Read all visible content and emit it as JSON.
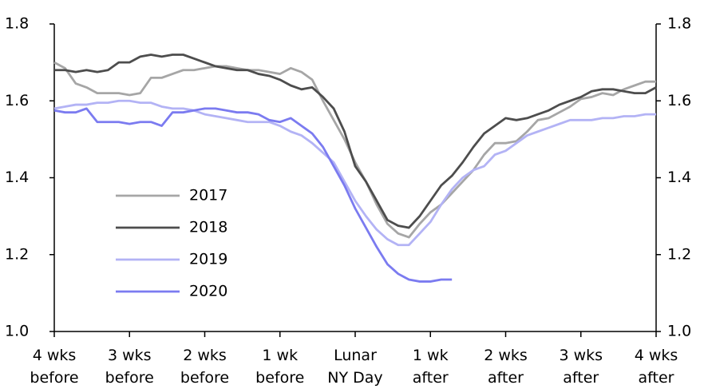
{
  "chart_data": {
    "type": "line",
    "x": [
      -28,
      -27,
      -26,
      -25,
      -24,
      -23,
      -22,
      -21,
      -20,
      -19,
      -18,
      -17,
      -16,
      -15,
      -14,
      -13,
      -12,
      -11,
      -10,
      -9,
      -8,
      -7,
      -6,
      -5,
      -4,
      -3,
      -2,
      -1,
      0,
      1,
      2,
      3,
      4,
      5,
      6,
      7,
      8,
      9,
      10,
      11,
      12,
      13,
      14,
      15,
      16,
      17,
      18,
      19,
      20,
      21,
      22,
      23,
      24,
      25,
      26,
      27,
      28
    ],
    "xlim": [
      -28,
      28
    ],
    "xticks": [
      {
        "value": -28,
        "label": "4 wks before"
      },
      {
        "value": -21,
        "label": "3 wks before"
      },
      {
        "value": -14,
        "label": "2 wks before"
      },
      {
        "value": -7,
        "label": "1 wk before"
      },
      {
        "value": 0,
        "label": "Lunar NY Day"
      },
      {
        "value": 7,
        "label": "1 wk after"
      },
      {
        "value": 14,
        "label": "2 wks after"
      },
      {
        "value": 21,
        "label": "3 wks after"
      },
      {
        "value": 28,
        "label": "4 wks after"
      }
    ],
    "ylim": [
      1.0,
      1.8
    ],
    "yticks": [
      {
        "value": 1,
        "label": "1.0"
      },
      1.2,
      1.4,
      1.6,
      1.8
    ],
    "right_axis_labels": true,
    "legend": "left",
    "series": [
      {
        "name": "2017",
        "color": "#a6a6a6",
        "values": [
          1.7,
          1.685,
          1.645,
          1.635,
          1.62,
          1.62,
          1.62,
          1.615,
          1.62,
          1.66,
          1.66,
          1.67,
          1.68,
          1.68,
          1.685,
          1.69,
          1.69,
          1.685,
          1.68,
          1.68,
          1.675,
          1.67,
          1.685,
          1.675,
          1.655,
          1.6,
          1.55,
          1.5,
          1.44,
          1.39,
          1.33,
          1.28,
          1.255,
          1.245,
          1.28,
          1.31,
          1.33,
          1.36,
          1.39,
          1.42,
          1.46,
          1.49,
          1.49,
          1.495,
          1.52,
          1.55,
          1.555,
          1.57,
          1.585,
          1.605,
          1.61,
          1.62,
          1.615,
          1.63,
          1.64,
          1.65,
          1.65
        ]
      },
      {
        "name": "2018",
        "color": "#4d4d4d",
        "values": [
          1.68,
          1.68,
          1.675,
          1.68,
          1.675,
          1.68,
          1.7,
          1.7,
          1.715,
          1.72,
          1.715,
          1.72,
          1.72,
          1.71,
          1.7,
          1.69,
          1.685,
          1.68,
          1.68,
          1.67,
          1.665,
          1.655,
          1.64,
          1.63,
          1.635,
          1.61,
          1.58,
          1.52,
          1.43,
          1.39,
          1.34,
          1.29,
          1.275,
          1.27,
          1.3,
          1.34,
          1.38,
          1.405,
          1.44,
          1.48,
          1.515,
          1.535,
          1.555,
          1.55,
          1.555,
          1.565,
          1.575,
          1.59,
          1.6,
          1.61,
          1.625,
          1.63,
          1.63,
          1.625,
          1.62,
          1.62,
          1.635
        ]
      },
      {
        "name": "2019",
        "color": "#b3b3f5",
        "values": [
          1.58,
          1.585,
          1.59,
          1.59,
          1.595,
          1.595,
          1.6,
          1.6,
          1.595,
          1.595,
          1.585,
          1.58,
          1.58,
          1.575,
          1.565,
          1.56,
          1.555,
          1.55,
          1.545,
          1.545,
          1.545,
          1.535,
          1.52,
          1.51,
          1.49,
          1.465,
          1.44,
          1.39,
          1.34,
          1.3,
          1.265,
          1.24,
          1.225,
          1.225,
          1.255,
          1.285,
          1.33,
          1.37,
          1.4,
          1.42,
          1.43,
          1.46,
          1.47,
          1.49,
          1.51,
          1.52,
          1.53,
          1.54,
          1.55,
          1.55,
          1.55,
          1.555,
          1.555,
          1.56,
          1.56,
          1.565,
          1.565
        ]
      },
      {
        "name": "2020",
        "color": "#7b7bf0",
        "values": [
          1.575,
          1.57,
          1.57,
          1.58,
          1.545,
          1.545,
          1.545,
          1.54,
          1.545,
          1.545,
          1.535,
          1.57,
          1.57,
          1.575,
          1.58,
          1.58,
          1.575,
          1.57,
          1.57,
          1.565,
          1.55,
          1.545,
          1.555,
          1.535,
          1.515,
          1.48,
          1.43,
          1.38,
          1.32,
          1.27,
          1.22,
          1.175,
          1.15,
          1.135,
          1.13,
          1.13,
          1.135,
          1.135,
          null,
          null,
          null,
          null,
          null,
          null,
          null,
          null,
          null,
          null,
          null,
          null,
          null,
          null,
          null,
          null,
          null,
          null,
          null
        ]
      }
    ]
  }
}
